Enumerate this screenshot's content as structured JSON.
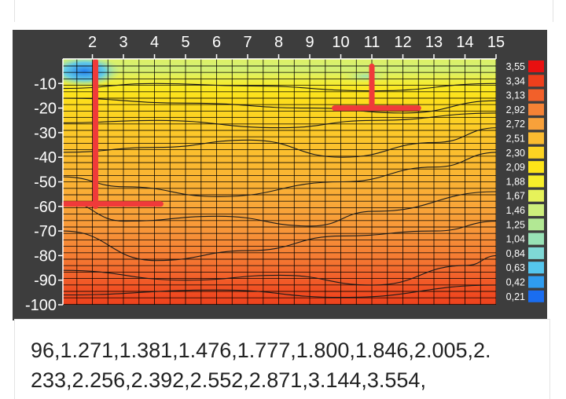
{
  "chart_data": {
    "type": "heatmap",
    "title": "",
    "xlabel": "",
    "ylabel": "",
    "x_ticks": [
      2,
      3,
      4,
      5,
      6,
      7,
      8,
      9,
      10,
      11,
      12,
      13,
      14,
      15
    ],
    "x_range": [
      1.05,
      15.0
    ],
    "y_ticks": [
      -10,
      -20,
      -30,
      -40,
      -50,
      -60,
      -70,
      -80,
      -90,
      -100
    ],
    "y_range": [
      0,
      -100
    ],
    "legend_position": "right",
    "colorbar": [
      {
        "label": "3,55",
        "value": 3.55,
        "color": "#e81010"
      },
      {
        "label": "3,34",
        "value": 3.34,
        "color": "#ee3f1c"
      },
      {
        "label": "3,13",
        "value": 3.13,
        "color": "#f2602a"
      },
      {
        "label": "2,92",
        "value": 2.92,
        "color": "#f58235"
      },
      {
        "label": "2,72",
        "value": 2.72,
        "color": "#f8a13a"
      },
      {
        "label": "2,51",
        "value": 2.51,
        "color": "#fbbb30"
      },
      {
        "label": "2,30",
        "value": 2.3,
        "color": "#fcd322"
      },
      {
        "label": "2,09",
        "value": 2.09,
        "color": "#fde418"
      },
      {
        "label": "1,88",
        "value": 1.88,
        "color": "#f7ee2a"
      },
      {
        "label": "1,67",
        "value": 1.67,
        "color": "#e6f25a"
      },
      {
        "label": "1,46",
        "value": 1.46,
        "color": "#cdee7c"
      },
      {
        "label": "1,25",
        "value": 1.25,
        "color": "#b2e894"
      },
      {
        "label": "1,04",
        "value": 1.04,
        "color": "#98e2b6"
      },
      {
        "label": "0,84",
        "value": 0.84,
        "color": "#7fd8d6"
      },
      {
        "label": "0,63",
        "value": 0.63,
        "color": "#55c6ee"
      },
      {
        "label": "0,42",
        "value": 0.42,
        "color": "#2f9cf0"
      },
      {
        "label": "0,21",
        "value": 0.21,
        "color": "#1a6df0"
      }
    ],
    "depth_profile": [
      {
        "depth": 0,
        "value": 1.6
      },
      {
        "depth": -4,
        "value": 1.5
      },
      {
        "depth": -8,
        "value": 1.75
      },
      {
        "depth": -12,
        "value": 2.0
      },
      {
        "depth": -16,
        "value": 2.15
      },
      {
        "depth": -22,
        "value": 2.28
      },
      {
        "depth": -30,
        "value": 2.4
      },
      {
        "depth": -40,
        "value": 2.5
      },
      {
        "depth": -50,
        "value": 2.58
      },
      {
        "depth": -60,
        "value": 2.68
      },
      {
        "depth": -70,
        "value": 2.8
      },
      {
        "depth": -80,
        "value": 2.95
      },
      {
        "depth": -88,
        "value": 3.12
      },
      {
        "depth": -95,
        "value": 3.26
      },
      {
        "depth": -100,
        "value": 3.32
      }
    ],
    "anomalies": [
      {
        "x": 2.0,
        "depth": -5,
        "value": 0.3
      },
      {
        "x": 11.0,
        "depth": -7,
        "value": 1.1
      }
    ],
    "annotations": [
      {
        "x": [
          2.1,
          2.1
        ],
        "depth": [
          -1,
          -60
        ],
        "color": "#f03a3a"
      },
      {
        "x": [
          1.1,
          4.2
        ],
        "depth": [
          -59,
          -59
        ],
        "color": "#f03a3a"
      },
      {
        "x": [
          11.0,
          11.0
        ],
        "depth": [
          -3,
          -20
        ],
        "color": "#f03a3a"
      },
      {
        "x": [
          9.8,
          12.5
        ],
        "depth": [
          -20,
          -20
        ],
        "color": "#f03a3a"
      }
    ]
  },
  "caption": {
    "line1": "96,1.271,1.381,1.476,1.777,1.800,1.846,2.005,2.",
    "line2": "233,2.256,2.392,2.552,2.871,3.144,3.554,"
  }
}
